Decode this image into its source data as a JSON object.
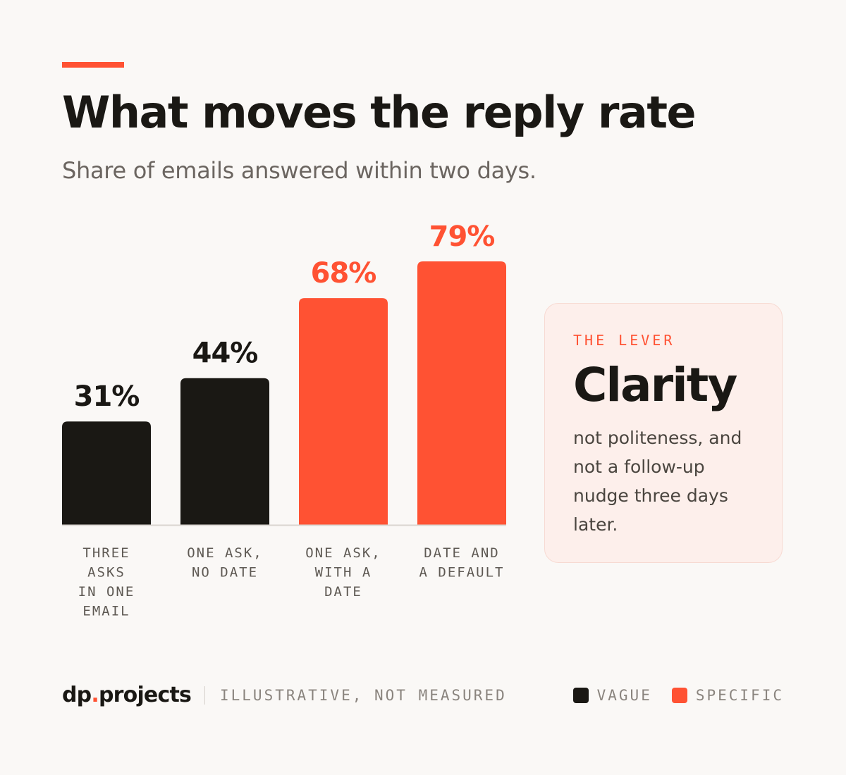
{
  "colors": {
    "background": "#faf8f6",
    "ink": "#1a1814",
    "accent": "#ff5233",
    "subtitle": "#6b6560",
    "muted": "#8a847e",
    "card_bg": "#fdefeb",
    "card_border": "#f7dad2",
    "baseline": "#d9d5d0",
    "category_label": "#5e5953"
  },
  "header": {
    "title": "What moves the reply rate",
    "subtitle": "Share of emails answered within two days."
  },
  "chart_data": {
    "type": "bar",
    "categories": [
      [
        "THREE",
        "ASKS",
        "IN ONE",
        "EMAIL"
      ],
      [
        "ONE ASK,",
        "NO DATE"
      ],
      [
        "ONE ASK,",
        "WITH A",
        "DATE"
      ],
      [
        "DATE AND",
        "A DEFAULT"
      ]
    ],
    "values": [
      31,
      44,
      68,
      79
    ],
    "value_labels": [
      "31%",
      "44%",
      "68%",
      "79%"
    ],
    "bar_groups": [
      "VAGUE",
      "VAGUE",
      "SPECIFIC",
      "SPECIFIC"
    ],
    "ylim": [
      0,
      100
    ],
    "grid": false,
    "legend_placement": "bottom-right",
    "title": "What moves the reply rate",
    "subtitle": "Share of emails answered within two days."
  },
  "lever_card": {
    "kicker": "THE LEVER",
    "headline": "Clarity",
    "body": "not politeness, and not a follow-up nudge three days later."
  },
  "footer": {
    "brand_part1": "dp",
    "brand_dot": ".",
    "brand_part2": "projects",
    "note": "ILLUSTRATIVE, NOT MEASURED"
  },
  "legend": {
    "items": [
      {
        "label": "VAGUE",
        "color": "#1a1814"
      },
      {
        "label": "SPECIFIC",
        "color": "#ff5233"
      }
    ]
  }
}
